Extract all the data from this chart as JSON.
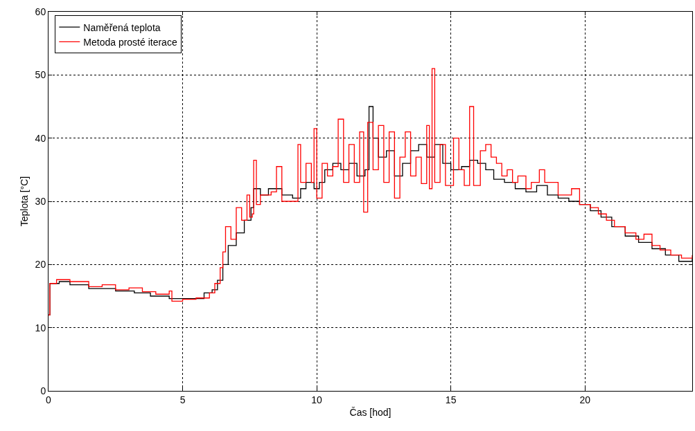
{
  "chart_data": {
    "type": "step",
    "xlabel": "Čas [hod]",
    "ylabel": "Teplota [°C]",
    "xlim": [
      0,
      24
    ],
    "xticks": [
      0,
      5,
      10,
      15,
      20
    ],
    "ylim": [
      0,
      60
    ],
    "yticks": [
      0,
      10,
      20,
      30,
      40,
      50,
      60
    ],
    "grid": true,
    "legend": "top left",
    "marker": "none",
    "line_style": "solid",
    "series": [
      {
        "name": "Naměřená teplota",
        "color": "#000000",
        "x": [
          0,
          0.05,
          0.4,
          0.8,
          1.5,
          2.5,
          3.2,
          3.8,
          4.5,
          5.2,
          5.8,
          6.1,
          6.3,
          6.5,
          6.7,
          7,
          7.3,
          7.55,
          7.65,
          7.9,
          8.2,
          8.7,
          9.1,
          9.4,
          9.6,
          9.9,
          10.1,
          10.3,
          10.6,
          10.9,
          11.2,
          11.5,
          11.8,
          11.95,
          12.1,
          12.3,
          12.6,
          12.9,
          13.2,
          13.5,
          13.8,
          14.1,
          14.4,
          14.7,
          15,
          15.4,
          15.7,
          16,
          16.3,
          16.6,
          17,
          17.4,
          17.8,
          18.2,
          18.6,
          19,
          19.4,
          19.8,
          20.2,
          20.6,
          21,
          21.5,
          22,
          22.5,
          23,
          23.5,
          24
        ],
        "values": [
          12,
          17,
          17.3,
          16.8,
          16.2,
          15.8,
          15.5,
          15,
          14.6,
          14.6,
          15.5,
          16,
          17.5,
          20,
          23,
          25,
          27,
          29,
          32,
          31,
          32,
          31,
          30.5,
          32,
          33,
          32,
          33,
          35,
          36,
          35,
          36,
          34,
          35,
          45,
          40,
          37,
          38,
          34,
          36,
          38,
          39,
          37,
          39,
          36,
          35,
          35.5,
          36.5,
          36,
          35,
          33.5,
          33,
          32,
          31.5,
          32.5,
          31,
          30.5,
          30,
          29.5,
          28.5,
          27.5,
          26,
          24.5,
          23.5,
          22.5,
          21.5,
          20.5,
          21
        ]
      },
      {
        "name": "Metoda prosté iterace",
        "color": "#ff0000",
        "x": [
          0,
          0.05,
          0.3,
          0.8,
          1.5,
          2,
          2.5,
          3,
          3.5,
          4,
          4.5,
          4.6,
          5,
          5.5,
          6,
          6.2,
          6.4,
          6.5,
          6.6,
          6.8,
          7,
          7.2,
          7.4,
          7.5,
          7.6,
          7.65,
          7.75,
          7.9,
          8.3,
          8.5,
          8.7,
          9,
          9.3,
          9.4,
          9.6,
          9.8,
          9.9,
          10,
          10.2,
          10.4,
          10.6,
          10.8,
          11,
          11.2,
          11.4,
          11.6,
          11.75,
          11.9,
          12.1,
          12.3,
          12.5,
          12.7,
          12.9,
          13.1,
          13.3,
          13.5,
          13.7,
          13.9,
          14.1,
          14.2,
          14.3,
          14.4,
          14.6,
          14.8,
          15.1,
          15.3,
          15.5,
          15.7,
          15.85,
          16.1,
          16.3,
          16.5,
          16.7,
          16.9,
          17.1,
          17.3,
          17.5,
          17.8,
          18,
          18.3,
          18.5,
          18.8,
          19,
          19.5,
          19.8,
          20.2,
          20.5,
          20.8,
          21.1,
          21.5,
          21.9,
          22.2,
          22.5,
          22.8,
          23.2,
          23.6,
          24
        ],
        "values": [
          12,
          17,
          17.6,
          17.3,
          16.5,
          16.8,
          16,
          16.3,
          15.7,
          15.3,
          15.8,
          14.2,
          14.5,
          14.7,
          15.5,
          17,
          19.5,
          22,
          26,
          24,
          29,
          27,
          31,
          27.5,
          28,
          36.5,
          29.5,
          31,
          31.5,
          35.5,
          30,
          30,
          39,
          33,
          36,
          33,
          41.5,
          30.5,
          36,
          34,
          35.5,
          43,
          33,
          39,
          33,
          41,
          28.3,
          42.5,
          35,
          42,
          33,
          41,
          30.5,
          37,
          41,
          34,
          37,
          32.8,
          42,
          32,
          51,
          33,
          39,
          32.5,
          40,
          35,
          32.5,
          45,
          32.5,
          38,
          39,
          37,
          36,
          34,
          35,
          33,
          34,
          32,
          33,
          35,
          33,
          33,
          31,
          32,
          29.5,
          29,
          28,
          27,
          26,
          25,
          24,
          24.8,
          23,
          22.3,
          21.5,
          21,
          21.5
        ]
      }
    ]
  }
}
